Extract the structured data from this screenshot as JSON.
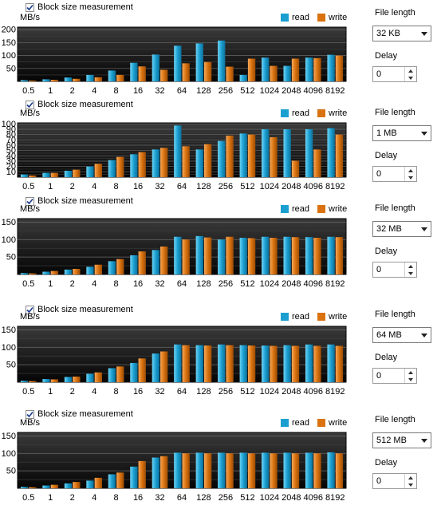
{
  "colors": {
    "read": "#1a9fd0",
    "write": "#d9720f"
  },
  "legend": {
    "read": "read",
    "write": "write"
  },
  "panels": [
    {
      "checkbox_label": "Block size measurement",
      "checked": true,
      "file_length_label": "File length",
      "file_length_value": "32 KB",
      "delay_label": "Delay",
      "delay_value": "0",
      "chart_data": {
        "type": "bar",
        "ylabel": "MB/s",
        "yticks": [
          50,
          100,
          150,
          200
        ],
        "ylim": [
          0,
          210
        ],
        "categories": [
          "0.5",
          "1",
          "2",
          "4",
          "8",
          "16",
          "32",
          "64",
          "128",
          "256",
          "512",
          "1024",
          "2048",
          "4096",
          "8192"
        ],
        "series": [
          {
            "name": "read",
            "values": [
              5,
              8,
              15,
              25,
              42,
              72,
              104,
              138,
              147,
              158,
              25,
              92,
              60,
              92,
              103
            ]
          },
          {
            "name": "write",
            "values": [
              3,
              6,
              10,
              16,
              25,
              58,
              45,
              70,
              75,
              57,
              88,
              60,
              88,
              90,
              100
            ]
          }
        ]
      }
    },
    {
      "checkbox_label": "Block size measurement",
      "checked": true,
      "file_length_label": "File length",
      "file_length_value": "1 MB",
      "delay_label": "Delay",
      "delay_value": "0",
      "chart_data": {
        "type": "bar",
        "ylabel": "MB/s",
        "yticks": [
          10,
          20,
          30,
          40,
          50,
          60,
          70,
          80,
          90,
          100
        ],
        "ylim": [
          0,
          102
        ],
        "categories": [
          "0.5",
          "1",
          "2",
          "4",
          "8",
          "16",
          "32",
          "64",
          "128",
          "256",
          "512",
          "1024",
          "2048",
          "4096",
          "8192"
        ],
        "series": [
          {
            "name": "read",
            "values": [
              5,
              8,
              12,
              20,
              32,
              43,
              52,
              97,
              52,
              68,
              82,
              90,
              90,
              90,
              92
            ]
          },
          {
            "name": "write",
            "values": [
              3,
              8,
              14,
              25,
              38,
              47,
              55,
              58,
              62,
              78,
              80,
              75,
              31,
              52,
              80
            ]
          }
        ]
      }
    },
    {
      "checkbox_label": "Block size measurement",
      "checked": true,
      "file_length_label": "File length",
      "file_length_value": "32 MB",
      "delay_label": "Delay",
      "delay_value": "0",
      "chart_data": {
        "type": "bar",
        "ylabel": "MB/s",
        "yticks": [
          50,
          100,
          150
        ],
        "ylim": [
          0,
          160
        ],
        "categories": [
          "0.5",
          "1",
          "2",
          "4",
          "8",
          "16",
          "32",
          "64",
          "128",
          "256",
          "512",
          "1024",
          "2048",
          "4096",
          "8192"
        ],
        "series": [
          {
            "name": "read",
            "values": [
              4,
              8,
              14,
              22,
              38,
              55,
              70,
              108,
              110,
              100,
              105,
              108,
              108,
              107,
              108
            ]
          },
          {
            "name": "write",
            "values": [
              3,
              10,
              16,
              28,
              44,
              66,
              80,
              100,
              106,
              108,
              104,
              105,
              107,
              105,
              107
            ]
          }
        ]
      }
    },
    {
      "checkbox_label": "Block size measurement",
      "checked": true,
      "file_length_label": "File length",
      "file_length_value": "64 MB",
      "delay_label": "Delay",
      "delay_value": "0",
      "chart_data": {
        "type": "bar",
        "ylabel": "MB/s",
        "yticks": [
          50,
          100,
          150
        ],
        "ylim": [
          0,
          160
        ],
        "categories": [
          "0.5",
          "1",
          "2",
          "4",
          "8",
          "16",
          "32",
          "64",
          "128",
          "256",
          "512",
          "1024",
          "2048",
          "4096",
          "8192"
        ],
        "series": [
          {
            "name": "read",
            "values": [
              4,
              9,
              15,
              24,
              40,
              55,
              82,
              108,
              106,
              108,
              106,
              105,
              106,
              108,
              108
            ]
          },
          {
            "name": "write",
            "values": [
              3,
              8,
              16,
              28,
              45,
              68,
              88,
              106,
              105,
              106,
              105,
              104,
              104,
              104,
              104
            ]
          }
        ]
      }
    },
    {
      "checkbox_label": "Block size measurement",
      "checked": true,
      "file_length_label": "File length",
      "file_length_value": "512 MB",
      "delay_label": "Delay",
      "delay_value": "0",
      "chart_data": {
        "type": "bar",
        "ylabel": "MB/s",
        "yticks": [
          50,
          100,
          150
        ],
        "ylim": [
          0,
          160
        ],
        "categories": [
          "0.5",
          "1",
          "2",
          "4",
          "8",
          "16",
          "32",
          "64",
          "128",
          "256",
          "512",
          "1024",
          "2048",
          "4096",
          "8192"
        ],
        "series": [
          {
            "name": "read",
            "values": [
              4,
              8,
              14,
              22,
              40,
              62,
              88,
              102,
              102,
              102,
              102,
              102,
              102,
              102,
              103
            ]
          },
          {
            "name": "write",
            "values": [
              3,
              10,
              18,
              30,
              45,
              78,
              92,
              100,
              100,
              100,
              100,
              100,
              100,
              100,
              100
            ]
          }
        ]
      }
    }
  ]
}
